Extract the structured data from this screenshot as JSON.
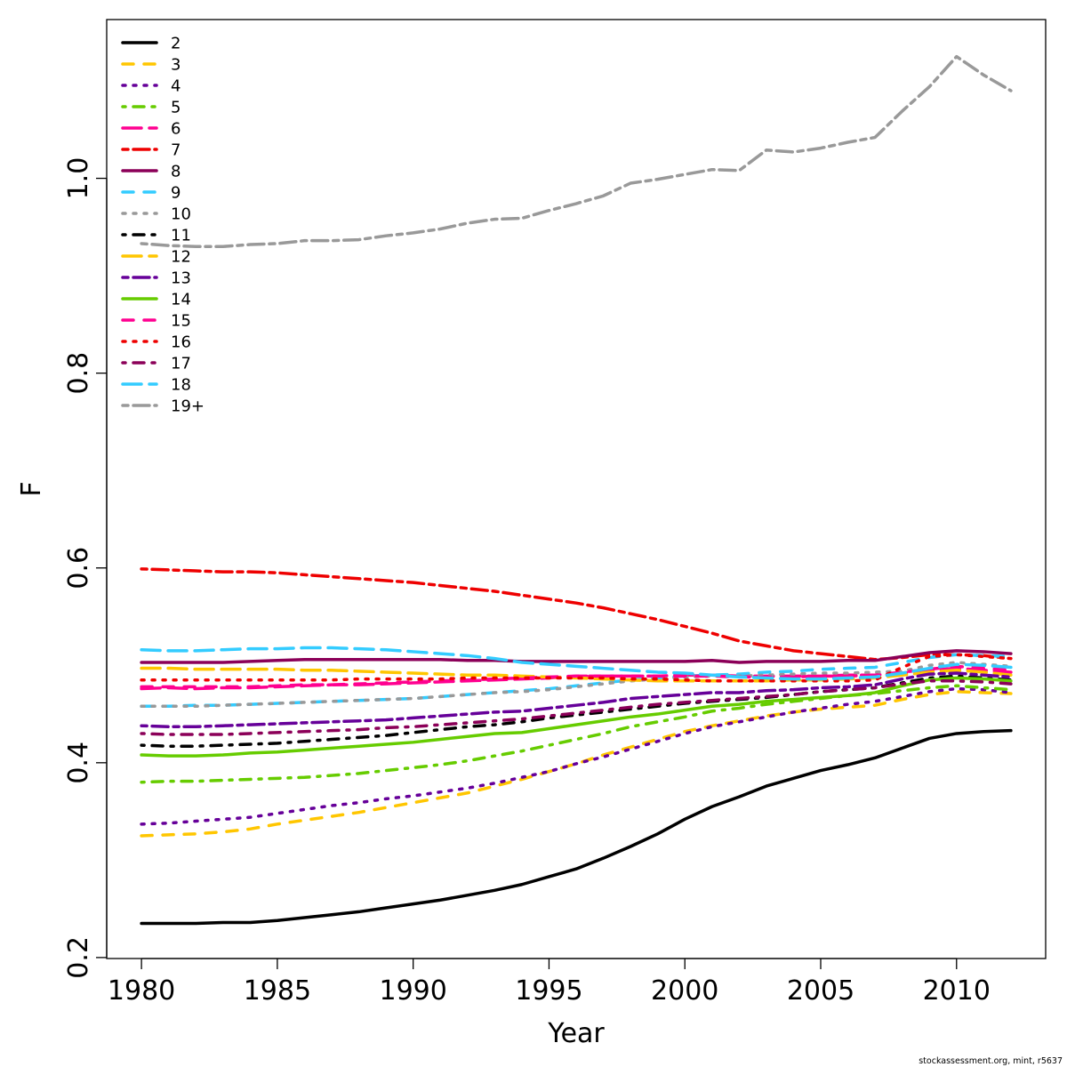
{
  "chart_data": {
    "type": "line",
    "xlabel": "Year",
    "ylabel": "F",
    "xlim": [
      1978.72,
      2013.28
    ],
    "ylim": [
      0.199,
      1.163
    ],
    "x_ticks": [
      1980,
      1985,
      1990,
      1995,
      2000,
      2005,
      2010
    ],
    "x_tick_labels": [
      "1980",
      "1985",
      "1990",
      "1995",
      "2000",
      "2005",
      "2010"
    ],
    "y_ticks": [
      0.2,
      0.4,
      0.6,
      0.8,
      1.0
    ],
    "y_tick_labels": [
      "0.2",
      "0.4",
      "0.6",
      "0.8",
      "1.0"
    ],
    "grid": false,
    "legend": "top-left",
    "x": [
      1980,
      1981,
      1982,
      1983,
      1984,
      1985,
      1986,
      1987,
      1988,
      1989,
      1990,
      1991,
      1992,
      1993,
      1994,
      1995,
      1996,
      1997,
      1998,
      1999,
      2000,
      2001,
      2002,
      2003,
      2004,
      2005,
      2006,
      2007,
      2008,
      2009,
      2010,
      2011,
      2012
    ],
    "series": [
      {
        "name": "2",
        "color": "#000000",
        "lty": "solid",
        "values": [
          0.235,
          0.235,
          0.235,
          0.236,
          0.236,
          0.238,
          0.241,
          0.244,
          0.247,
          0.251,
          0.255,
          0.259,
          0.264,
          0.269,
          0.275,
          0.283,
          0.291,
          0.302,
          0.314,
          0.327,
          0.342,
          0.355,
          0.365,
          0.376,
          0.384,
          0.392,
          0.398,
          0.405,
          0.415,
          0.425,
          0.43,
          0.432,
          0.433
        ]
      },
      {
        "name": "3",
        "color": "#FFC600",
        "lty": "dashed",
        "values": [
          0.325,
          0.326,
          0.327,
          0.329,
          0.332,
          0.337,
          0.341,
          0.345,
          0.349,
          0.354,
          0.359,
          0.364,
          0.369,
          0.376,
          0.383,
          0.391,
          0.399,
          0.408,
          0.416,
          0.424,
          0.432,
          0.438,
          0.443,
          0.448,
          0.452,
          0.455,
          0.457,
          0.459,
          0.465,
          0.47,
          0.473,
          0.472,
          0.471
        ]
      },
      {
        "name": "4",
        "color": "#660099",
        "lty": "dotted",
        "values": [
          0.337,
          0.338,
          0.34,
          0.342,
          0.344,
          0.348,
          0.352,
          0.356,
          0.359,
          0.363,
          0.366,
          0.37,
          0.374,
          0.379,
          0.385,
          0.391,
          0.399,
          0.406,
          0.414,
          0.422,
          0.43,
          0.437,
          0.442,
          0.447,
          0.452,
          0.456,
          0.46,
          0.463,
          0.468,
          0.473,
          0.476,
          0.475,
          0.472
        ]
      },
      {
        "name": "5",
        "color": "#66CC00",
        "lty": "dotdash",
        "values": [
          0.38,
          0.381,
          0.381,
          0.382,
          0.383,
          0.384,
          0.385,
          0.387,
          0.389,
          0.392,
          0.395,
          0.398,
          0.402,
          0.407,
          0.412,
          0.418,
          0.424,
          0.43,
          0.437,
          0.442,
          0.447,
          0.453,
          0.456,
          0.46,
          0.463,
          0.466,
          0.469,
          0.471,
          0.474,
          0.477,
          0.479,
          0.477,
          0.475
        ]
      },
      {
        "name": "6",
        "color": "#FF0090",
        "lty": "longdash",
        "values": [
          0.476,
          0.477,
          0.476,
          0.477,
          0.477,
          0.478,
          0.479,
          0.48,
          0.48,
          0.481,
          0.482,
          0.483,
          0.484,
          0.485,
          0.486,
          0.487,
          0.489,
          0.489,
          0.489,
          0.489,
          0.49,
          0.49,
          0.489,
          0.489,
          0.489,
          0.489,
          0.49,
          0.49,
          0.492,
          0.495,
          0.497,
          0.495,
          0.493
        ]
      },
      {
        "name": "7",
        "color": "#EE0000",
        "lty": "twodash",
        "values": [
          0.599,
          0.598,
          0.597,
          0.596,
          0.596,
          0.595,
          0.593,
          0.591,
          0.589,
          0.587,
          0.585,
          0.582,
          0.579,
          0.576,
          0.572,
          0.568,
          0.564,
          0.559,
          0.553,
          0.547,
          0.54,
          0.533,
          0.525,
          0.52,
          0.515,
          0.512,
          0.509,
          0.506,
          0.508,
          0.511,
          0.511,
          0.51,
          0.507
        ]
      },
      {
        "name": "8",
        "color": "#8B0058",
        "lty": "solid",
        "values": [
          0.503,
          0.503,
          0.503,
          0.503,
          0.504,
          0.505,
          0.506,
          0.506,
          0.506,
          0.506,
          0.506,
          0.506,
          0.505,
          0.505,
          0.504,
          0.504,
          0.504,
          0.504,
          0.504,
          0.504,
          0.504,
          0.505,
          0.503,
          0.504,
          0.504,
          0.504,
          0.505,
          0.505,
          0.509,
          0.513,
          0.515,
          0.514,
          0.512
        ]
      },
      {
        "name": "9",
        "color": "#33CCFF",
        "lty": "dashed",
        "values": [
          0.458,
          0.458,
          0.459,
          0.459,
          0.46,
          0.461,
          0.462,
          0.463,
          0.464,
          0.465,
          0.466,
          0.468,
          0.47,
          0.472,
          0.474,
          0.476,
          0.479,
          0.482,
          0.485,
          0.487,
          0.489,
          0.49,
          0.491,
          0.493,
          0.494,
          0.496,
          0.497,
          0.498,
          0.503,
          0.508,
          0.511,
          0.51,
          0.509
        ]
      },
      {
        "name": "10",
        "color": "#999999",
        "lty": "dotted",
        "values": [
          0.458,
          0.458,
          0.458,
          0.459,
          0.46,
          0.461,
          0.462,
          0.463,
          0.464,
          0.465,
          0.466,
          0.468,
          0.47,
          0.472,
          0.473,
          0.475,
          0.478,
          0.481,
          0.484,
          0.486,
          0.488,
          0.489,
          0.489,
          0.49,
          0.491,
          0.492,
          0.492,
          0.493,
          0.494,
          0.5,
          0.503,
          0.501,
          0.499
        ]
      },
      {
        "name": "11",
        "color": "#000000",
        "lty": "dotdash",
        "values": [
          0.418,
          0.417,
          0.417,
          0.418,
          0.419,
          0.42,
          0.422,
          0.424,
          0.426,
          0.428,
          0.431,
          0.434,
          0.437,
          0.439,
          0.442,
          0.446,
          0.449,
          0.452,
          0.455,
          0.458,
          0.461,
          0.463,
          0.465,
          0.467,
          0.47,
          0.473,
          0.475,
          0.477,
          0.482,
          0.487,
          0.489,
          0.487,
          0.485
        ]
      },
      {
        "name": "12",
        "color": "#FFC600",
        "lty": "longdash",
        "values": [
          0.497,
          0.497,
          0.496,
          0.496,
          0.496,
          0.496,
          0.495,
          0.495,
          0.494,
          0.493,
          0.492,
          0.491,
          0.49,
          0.49,
          0.489,
          0.488,
          0.487,
          0.486,
          0.485,
          0.484,
          0.484,
          0.484,
          0.484,
          0.484,
          0.485,
          0.485,
          0.486,
          0.487,
          0.49,
          0.493,
          0.495,
          0.493,
          0.49
        ]
      },
      {
        "name": "13",
        "color": "#660099",
        "lty": "twodash",
        "values": [
          0.438,
          0.437,
          0.437,
          0.438,
          0.439,
          0.44,
          0.441,
          0.442,
          0.443,
          0.444,
          0.446,
          0.448,
          0.45,
          0.452,
          0.453,
          0.456,
          0.459,
          0.462,
          0.466,
          0.468,
          0.47,
          0.472,
          0.472,
          0.474,
          0.475,
          0.477,
          0.478,
          0.48,
          0.486,
          0.491,
          0.492,
          0.49,
          0.488
        ]
      },
      {
        "name": "14",
        "color": "#66CC00",
        "lty": "solid",
        "values": [
          0.408,
          0.407,
          0.407,
          0.408,
          0.41,
          0.411,
          0.413,
          0.415,
          0.417,
          0.419,
          0.421,
          0.424,
          0.427,
          0.43,
          0.431,
          0.435,
          0.439,
          0.443,
          0.447,
          0.45,
          0.454,
          0.458,
          0.46,
          0.463,
          0.465,
          0.467,
          0.469,
          0.472,
          0.479,
          0.485,
          0.487,
          0.486,
          0.484
        ]
      },
      {
        "name": "15",
        "color": "#FF0090",
        "lty": "dashed",
        "values": [
          0.478,
          0.478,
          0.478,
          0.478,
          0.478,
          0.479,
          0.48,
          0.48,
          0.481,
          0.482,
          0.483,
          0.484,
          0.485,
          0.486,
          0.487,
          0.488,
          0.489,
          0.489,
          0.489,
          0.489,
          0.489,
          0.489,
          0.488,
          0.488,
          0.488,
          0.489,
          0.489,
          0.49,
          0.493,
          0.496,
          0.499,
          0.497,
          0.495
        ]
      },
      {
        "name": "16",
        "color": "#EE0000",
        "lty": "dotted",
        "values": [
          0.485,
          0.485,
          0.485,
          0.485,
          0.485,
          0.485,
          0.485,
          0.485,
          0.486,
          0.486,
          0.486,
          0.486,
          0.487,
          0.487,
          0.487,
          0.487,
          0.487,
          0.487,
          0.486,
          0.486,
          0.485,
          0.484,
          0.484,
          0.484,
          0.484,
          0.484,
          0.484,
          0.485,
          0.498,
          0.509,
          0.511,
          0.509,
          0.507
        ]
      },
      {
        "name": "17",
        "color": "#8B0058",
        "lty": "dotdash",
        "values": [
          0.43,
          0.429,
          0.429,
          0.429,
          0.43,
          0.431,
          0.432,
          0.433,
          0.434,
          0.436,
          0.437,
          0.439,
          0.441,
          0.443,
          0.445,
          0.448,
          0.451,
          0.454,
          0.457,
          0.46,
          0.462,
          0.464,
          0.466,
          0.468,
          0.47,
          0.473,
          0.475,
          0.477,
          0.481,
          0.484,
          0.484,
          0.483,
          0.481
        ]
      },
      {
        "name": "18",
        "color": "#33CCFF",
        "lty": "longdash",
        "values": [
          0.516,
          0.515,
          0.515,
          0.516,
          0.517,
          0.517,
          0.518,
          0.518,
          0.517,
          0.516,
          0.514,
          0.512,
          0.51,
          0.507,
          0.503,
          0.501,
          0.499,
          0.497,
          0.495,
          0.493,
          0.492,
          0.49,
          0.488,
          0.487,
          0.486,
          0.486,
          0.487,
          0.488,
          0.492,
          0.497,
          0.501,
          0.5,
          0.498
        ]
      },
      {
        "name": "19+",
        "color": "#999999",
        "lty": "twodash",
        "values": [
          0.933,
          0.931,
          0.93,
          0.93,
          0.932,
          0.933,
          0.936,
          0.936,
          0.937,
          0.941,
          0.944,
          0.948,
          0.954,
          0.958,
          0.959,
          0.967,
          0.974,
          0.982,
          0.995,
          0.999,
          1.004,
          1.009,
          1.008,
          1.029,
          1.027,
          1.031,
          1.037,
          1.042,
          1.069,
          1.094,
          1.125,
          1.106,
          1.09
        ]
      }
    ]
  },
  "footer": "stockassessment.org, mint, r5637"
}
